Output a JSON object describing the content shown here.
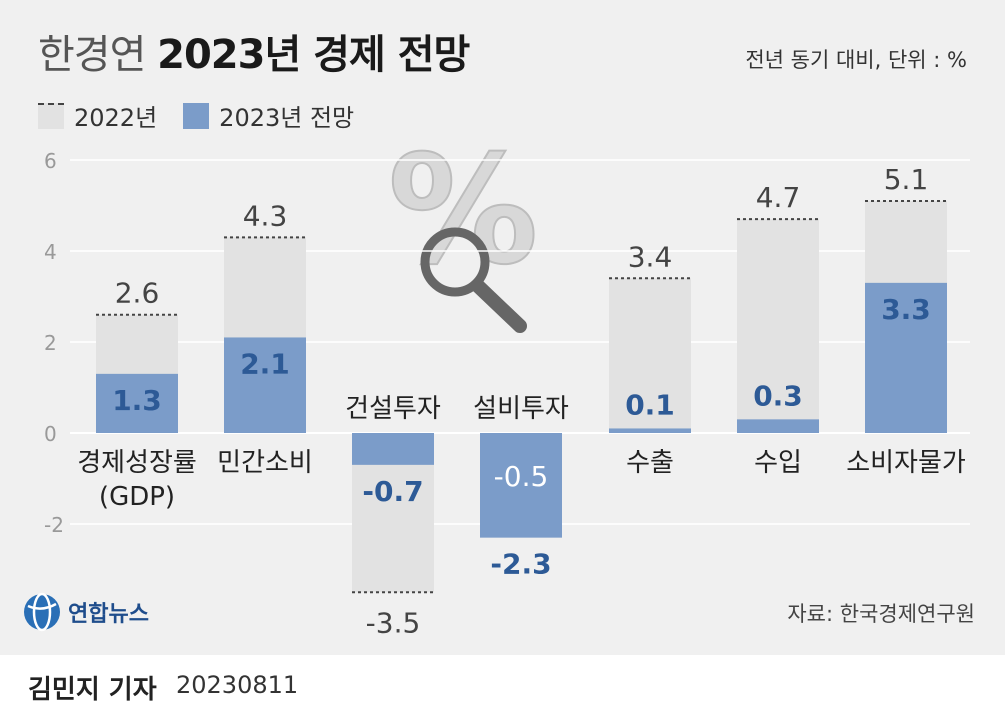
{
  "header": {
    "title_light": "한경연",
    "title_bold": "2023년 경제 전망",
    "unit": "전년 동기 대비, 단위 : %"
  },
  "footer": {
    "source": "자료: 한국경제연구원",
    "reporter": "김민지 기자",
    "date": "20230811",
    "logo_text": "연합뉴스"
  },
  "colors": {
    "y2022": "#e2e2e2",
    "y2023": "#7b9cc9",
    "value2023": "#2d5a96"
  },
  "chart_data": {
    "type": "bar",
    "categories": [
      "경제성장률\n(GDP)",
      "민간소비",
      "건설투자",
      "설비투자",
      "수출",
      "수입",
      "소비자물가"
    ],
    "series": [
      {
        "name": "2022년",
        "values": [
          2.6,
          4.3,
          -3.5,
          -0.5,
          3.4,
          4.7,
          5.1
        ]
      },
      {
        "name": "2023년 전망",
        "values": [
          1.3,
          2.1,
          -0.7,
          -2.3,
          0.1,
          0.3,
          3.3
        ]
      }
    ],
    "yticks": [
      6,
      4,
      2,
      0,
      -2
    ],
    "ylim": [
      -3.9,
      6.5
    ],
    "grid": true,
    "legend": "top-left"
  }
}
